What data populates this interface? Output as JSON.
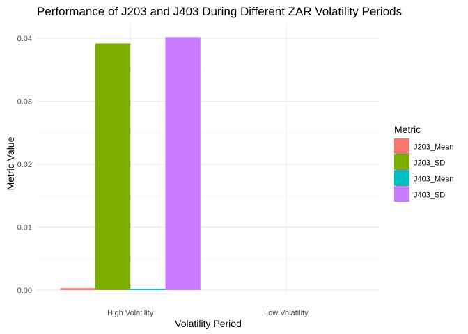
{
  "chart_data": {
    "type": "bar",
    "title": "Performance of J203 and J403 During Different ZAR Volatility Periods",
    "xlabel": "Volatility Period",
    "ylabel": "Metric Value",
    "categories": [
      "High Volatility",
      "Low Volatility"
    ],
    "series": [
      {
        "name": "J203_Mean",
        "color": "#F8766D",
        "values": [
          0.0003,
          0
        ]
      },
      {
        "name": "J203_SD",
        "color": "#7CAE00",
        "values": [
          0.0392,
          0
        ]
      },
      {
        "name": "J403_Mean",
        "color": "#00BFC4",
        "values": [
          0.0002,
          0
        ]
      },
      {
        "name": "J403_SD",
        "color": "#C77CFF",
        "values": [
          0.0402,
          0
        ]
      }
    ],
    "yticks": [
      0.0,
      0.01,
      0.02,
      0.03,
      0.04
    ],
    "ytick_labels": [
      "0.00",
      "0.01",
      "0.02",
      "0.03",
      "0.04"
    ],
    "ylim": [
      -0.00045,
      0.04245
    ],
    "grid": true,
    "legend": {
      "title": "Metric",
      "position": "right"
    }
  }
}
